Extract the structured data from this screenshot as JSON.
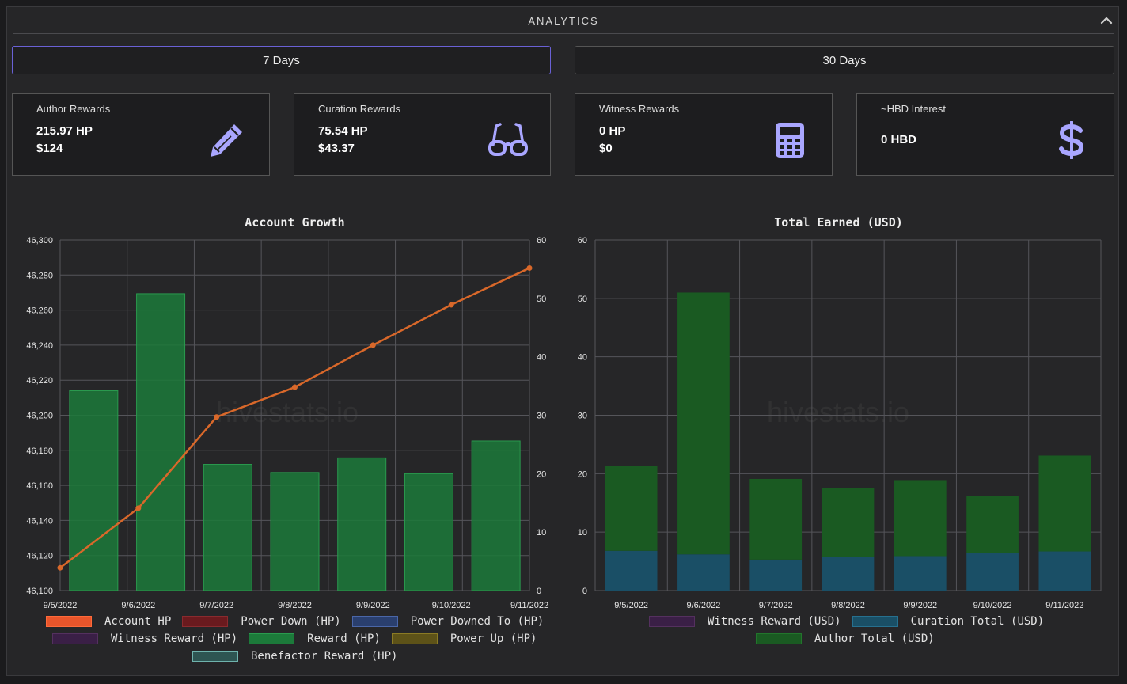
{
  "header": {
    "title": "ANALYTICS"
  },
  "tabs": [
    {
      "label": "7 Days"
    },
    {
      "label": "30 Days"
    }
  ],
  "cards": [
    {
      "title": "Author Rewards",
      "v1": "215.97 HP",
      "v2": "$124",
      "icon": "pencil-icon"
    },
    {
      "title": "Curation Rewards",
      "v1": "75.54 HP",
      "v2": "$43.37",
      "icon": "glasses-icon"
    },
    {
      "title": "Witness Rewards",
      "v1": "0 HP",
      "v2": "$0",
      "icon": "calculator-icon"
    },
    {
      "title": "~HBD Interest",
      "v1": "0 HBD",
      "v2": "",
      "icon": "dollar-icon"
    }
  ],
  "colors": {
    "accent": "#6a61d6",
    "icon": "#a9a6ff",
    "line": "#d9682a",
    "bar_green": "#1c7a3a",
    "author_dark": "#1a5a22",
    "curation_teal": "#1a4f66"
  },
  "watermark": "hivestats.io",
  "chart_data": [
    {
      "type": "bar",
      "title": "Account Growth",
      "categories": [
        "9/5/2022",
        "9/6/2022",
        "9/7/2022",
        "9/8/2022",
        "9/9/2022",
        "9/10/2022",
        "9/11/2022"
      ],
      "y_left": {
        "min": 46100,
        "max": 46300,
        "step": 20,
        "ticks": [
          "46,100",
          "46,120",
          "46,140",
          "46,160",
          "46,180",
          "46,200",
          "46,220",
          "46,240",
          "46,260",
          "46,280",
          "46,300"
        ]
      },
      "y_right": {
        "min": 0,
        "max": 60,
        "step": 10,
        "ticks": [
          "0",
          "10",
          "20",
          "30",
          "40",
          "50",
          "60"
        ]
      },
      "series": [
        {
          "name": "Account HP",
          "kind": "line",
          "axis": "left",
          "color": "#d9682a",
          "values": [
            46113,
            46147,
            46199,
            46216,
            46240,
            46263,
            46284
          ]
        },
        {
          "name": "Reward (HP)",
          "kind": "bar",
          "axis": "right",
          "color": "#1c7a3a",
          "values": [
            34.2,
            50.8,
            21.6,
            20.2,
            22.7,
            20.0,
            25.6
          ]
        }
      ],
      "legend": [
        {
          "label": "Account HP",
          "color": "#e8552b",
          "border": "#ff6a3a"
        },
        {
          "label": "Power Down (HP)",
          "color": "#6a1a1e",
          "border": "#8a2a2e"
        },
        {
          "label": "Power Downed To (HP)",
          "color": "#2a3f6e",
          "border": "#4a66a8"
        },
        {
          "label": "Witness Reward (HP)",
          "color": "#3a1f46",
          "border": "#54305f"
        },
        {
          "label": "Reward (HP)",
          "color": "#1c7a3a",
          "border": "#2a9a4e"
        },
        {
          "label": "Power Up (HP)",
          "color": "#5d5218",
          "border": "#8a7a24"
        },
        {
          "label": "Benefactor Reward (HP)",
          "color": "#2e5552",
          "border": "#6fb3ad"
        }
      ],
      "grid": true
    },
    {
      "type": "bar",
      "title": "Total Earned (USD)",
      "stacked": true,
      "categories": [
        "9/5/2022",
        "9/6/2022",
        "9/7/2022",
        "9/8/2022",
        "9/9/2022",
        "9/10/2022",
        "9/11/2022"
      ],
      "y": {
        "min": 0,
        "max": 60,
        "step": 10,
        "ticks": [
          "0",
          "10",
          "20",
          "30",
          "40",
          "50",
          "60"
        ]
      },
      "series": [
        {
          "name": "Witness Reward (USD)",
          "color": "#3a1f46",
          "values": [
            0,
            0,
            0,
            0,
            0,
            0,
            0
          ]
        },
        {
          "name": "Curation Total (USD)",
          "color": "#1a4f66",
          "values": [
            6.8,
            6.2,
            5.3,
            5.7,
            5.9,
            6.5,
            6.7
          ]
        },
        {
          "name": "Author Total (USD)",
          "color": "#1a5a22",
          "values": [
            14.6,
            44.8,
            13.8,
            11.8,
            13.0,
            9.7,
            16.4
          ]
        }
      ],
      "legend": [
        {
          "label": "Witness Reward (USD)",
          "color": "#3a1f46",
          "border": "#54305f"
        },
        {
          "label": "Curation Total (USD)",
          "color": "#1a4f66",
          "border": "#26708f"
        },
        {
          "label": "Author Total (USD)",
          "color": "#1a5a22",
          "border": "#22752c"
        }
      ],
      "grid": true
    }
  ]
}
